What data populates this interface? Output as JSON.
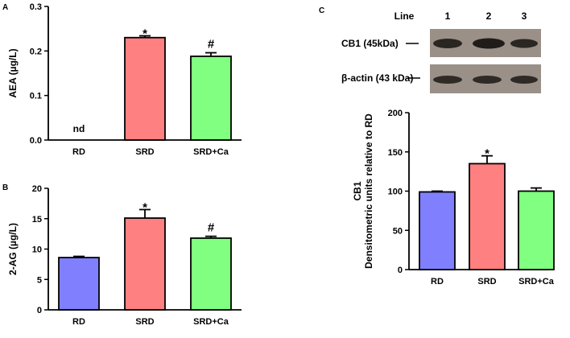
{
  "panels": {
    "a": "A",
    "b": "B",
    "c": "C"
  },
  "colors": {
    "RD": "#8080ff",
    "SRD": "#ff8080",
    "SRD+Ca": "#80ff80"
  },
  "chart_data": [
    {
      "panel": "A",
      "type": "bar",
      "categories": [
        "RD",
        "SRD",
        "SRD+Ca"
      ],
      "values": [
        0,
        0.23,
        0.188
      ],
      "errors": [
        0,
        0.004,
        0.008
      ],
      "annotations": [
        "nd",
        "*",
        "#"
      ],
      "ylabel": "AEA (µg/L)",
      "ylim": [
        0,
        0.3
      ],
      "yticks": [
        "0.0",
        "0.1",
        "0.2",
        "0.3"
      ]
    },
    {
      "panel": "B",
      "type": "bar",
      "categories": [
        "RD",
        "SRD",
        "SRD+Ca"
      ],
      "values": [
        8.6,
        15.1,
        11.8
      ],
      "errors": [
        0.2,
        1.4,
        0.3
      ],
      "annotations": [
        "",
        "*",
        "#"
      ],
      "ylabel": "2-AG (µg/L)",
      "ylim": [
        0,
        20
      ],
      "yticks": [
        "0",
        "5",
        "10",
        "15",
        "20"
      ]
    },
    {
      "panel": "C",
      "type": "bar",
      "categories": [
        "RD",
        "SRD",
        "SRD+Ca"
      ],
      "values": [
        99,
        135,
        100
      ],
      "errors": [
        1,
        10,
        4
      ],
      "annotations": [
        "",
        "*",
        ""
      ],
      "ylabel_line1": "CB1",
      "ylabel_line2": "Densitometric units relative to RD",
      "ylim": [
        0,
        200
      ],
      "yticks": [
        "0",
        "50",
        "100",
        "150",
        "200"
      ]
    }
  ],
  "blot": {
    "header": "Line",
    "lanes": [
      "1",
      "2",
      "3"
    ],
    "rows": [
      "CB1 (45kDa)",
      "β-actin (43 kDa)"
    ]
  }
}
